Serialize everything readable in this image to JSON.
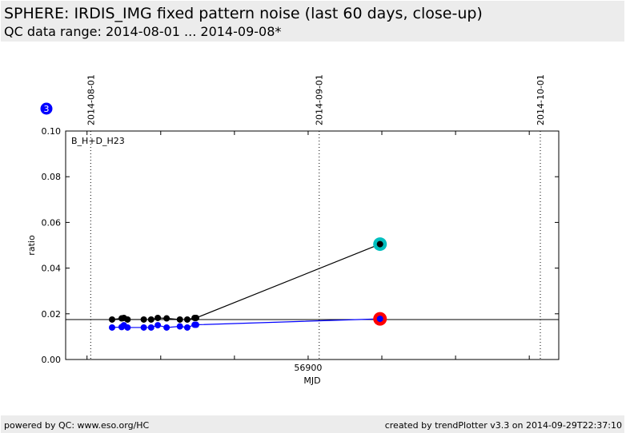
{
  "header": {
    "title": "SPHERE: IRDIS_IMG fixed pattern noise (last 60 days, close-up)",
    "subtitle": "QC data range: 2014-08-01 ... 2014-09-08*"
  },
  "footer": {
    "left": "powered by QC: www.eso.org/HC",
    "right": "created by trendPlotter v3.3 on 2014-09-29T22:37:10"
  },
  "badge": "3",
  "colors": {
    "series1": "#000000",
    "series2": "#0000ff",
    "highlight1": "#00bfbf",
    "highlight2": "#ff0000",
    "badge": "#0000ff"
  },
  "chart_data": {
    "type": "line",
    "panel_label": "B_H+D_H23",
    "xlabel": "MJD",
    "ylabel": "ratio",
    "xlim": [
      56867.1,
      56934.0
    ],
    "ylim": [
      0,
      0.1
    ],
    "xticks": [
      56870,
      56880,
      56890,
      56900,
      56910,
      56920,
      56930
    ],
    "xtick_labels": {
      "56900": "56900"
    },
    "yticks": [
      0.0,
      0.02,
      0.04,
      0.06,
      0.08,
      0.1
    ],
    "ytick_labels": [
      "0.00",
      "0.02",
      "0.04",
      "0.06",
      "0.08",
      "0.10"
    ],
    "date_markers": [
      {
        "mjd": 56870.5,
        "label": "2014-08-01"
      },
      {
        "mjd": 56901.5,
        "label": "2014-09-01"
      },
      {
        "mjd": 56931.5,
        "label": "2014-10-01"
      }
    ],
    "reference_line": 0.0175,
    "x": [
      56873.4,
      56874.7,
      56875.0,
      56875.5,
      56877.7,
      56878.7,
      56879.6,
      56880.8,
      56882.6,
      56883.6,
      56884.6,
      56884.8,
      56909.75
    ],
    "series": [
      {
        "values": [
          0.0175,
          0.018,
          0.0182,
          0.0175,
          0.0175,
          0.0175,
          0.0182,
          0.018,
          0.0175,
          0.0175,
          0.0182,
          0.0182,
          0.0505
        ],
        "color": "#000000",
        "last_highlight": "#00bfbf"
      },
      {
        "values": [
          0.014,
          0.0142,
          0.015,
          0.014,
          0.014,
          0.014,
          0.015,
          0.014,
          0.0145,
          0.014,
          0.0152,
          0.0152,
          0.0178
        ],
        "color": "#0000ff",
        "last_highlight": "#ff0000"
      }
    ]
  }
}
